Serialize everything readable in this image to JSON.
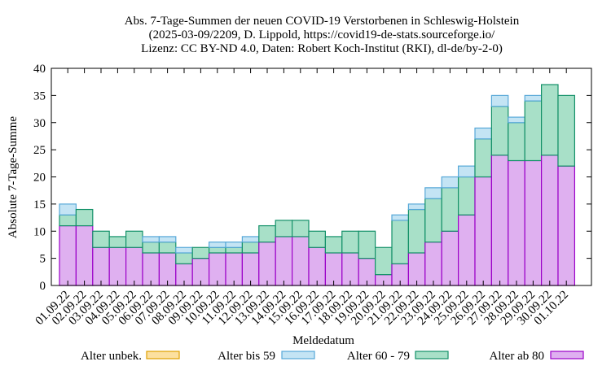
{
  "chart_data": {
    "type": "bar",
    "stacked": true,
    "title_lines": [
      "Abs. 7-Tage-Summen der neuen COVID-19 Verstorbenen in Schleswig-Holstein",
      "(2025-03-09/2209, D. Lippold, https://covid19-de-stats.sourceforge.io/",
      "Lizenz: CC BY-ND 4.0, Daten: Robert Koch-Institut (RKI), dl-de/by-2-0)"
    ],
    "xlabel": "Meldedatum",
    "ylabel": "Absolute 7-Tage-Summe",
    "ylim": [
      0,
      40
    ],
    "yticks": [
      0,
      5,
      10,
      15,
      20,
      25,
      30,
      35,
      40
    ],
    "grid": false,
    "legend_position": "bottom",
    "categories": [
      "01.09.22",
      "02.09.22",
      "03.09.22",
      "04.09.22",
      "05.09.22",
      "06.09.22",
      "07.09.22",
      "08.09.22",
      "09.09.22",
      "10.09.22",
      "11.09.22",
      "12.09.22",
      "13.09.22",
      "14.09.22",
      "15.09.22",
      "16.09.22",
      "17.09.22",
      "18.09.22",
      "19.09.22",
      "20.09.22",
      "21.09.22",
      "22.09.22",
      "23.09.22",
      "24.09.22",
      "25.09.22",
      "26.09.22",
      "27.09.22",
      "28.09.22",
      "29.09.22",
      "30.09.22",
      "01.10.22"
    ],
    "series": [
      {
        "name": "Alter ab 80",
        "color": "#dfb0f0",
        "stroke": "#9b00c8",
        "values": [
          11,
          11,
          7,
          7,
          7,
          6,
          6,
          4,
          5,
          6,
          6,
          6,
          8,
          9,
          9,
          7,
          6,
          6,
          5,
          2,
          4,
          6,
          8,
          10,
          13,
          20,
          24,
          23,
          23,
          24,
          22
        ]
      },
      {
        "name": "Alter 60 - 79",
        "color": "#a8e0c8",
        "stroke": "#139068",
        "values": [
          2,
          3,
          3,
          2,
          3,
          2,
          2,
          2,
          2,
          1,
          1,
          2,
          3,
          3,
          3,
          3,
          3,
          4,
          5,
          5,
          8,
          8,
          8,
          8,
          7,
          7,
          9,
          7,
          11,
          13,
          13
        ]
      },
      {
        "name": "Alter bis 59",
        "color": "#c4e4f4",
        "stroke": "#57a8d8",
        "values": [
          2,
          0,
          0,
          0,
          0,
          1,
          1,
          1,
          0,
          1,
          1,
          1,
          0,
          0,
          0,
          0,
          0,
          0,
          0,
          0,
          1,
          1,
          2,
          2,
          2,
          2,
          2,
          1,
          1,
          0,
          0
        ]
      },
      {
        "name": "Alter unbek.",
        "color": "#fce0a0",
        "stroke": "#e0a000",
        "values": [
          0,
          0,
          0,
          0,
          0,
          0,
          0,
          0,
          0,
          0,
          0,
          0,
          0,
          0,
          0,
          0,
          0,
          0,
          0,
          0,
          0,
          0,
          0,
          0,
          0,
          0,
          0,
          0,
          0,
          0,
          0
        ]
      }
    ],
    "legend_order": [
      "Alter unbek.",
      "Alter bis 59",
      "Alter 60 - 79",
      "Alter ab 80"
    ]
  }
}
